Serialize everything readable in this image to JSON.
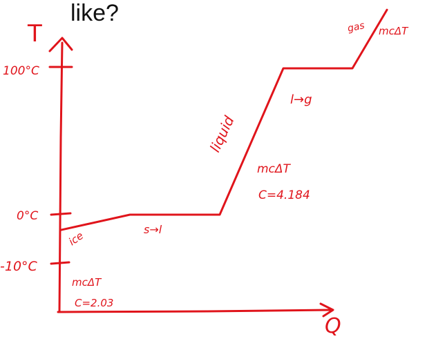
{
  "heading": "like?",
  "chart_data": {
    "type": "line",
    "xlabel": "Q",
    "ylabel": "T",
    "y_ticks": [
      {
        "label": "100°C",
        "value": 100
      },
      {
        "label": "0°C",
        "value": 0
      },
      {
        "label": "-10°C",
        "value": -10
      }
    ],
    "series": [
      {
        "x": [
          0,
          1,
          2.5,
          3.5,
          5,
          5.8
        ],
        "y": [
          -10,
          0,
          0,
          100,
          100,
          140
        ]
      }
    ],
    "annotations": {
      "ice": "ice",
      "ice_formula": "mcΔT",
      "ice_c": "C=2.03",
      "melting": "s→l",
      "liquid": "liquid",
      "liquid_formula": "mcΔT",
      "liquid_c": "C=4.184",
      "boiling": "l→g",
      "gas": "gas",
      "gas_formula": "mcΔT"
    },
    "colors": {
      "ink": "#e0141b",
      "heading": "#111111"
    }
  }
}
